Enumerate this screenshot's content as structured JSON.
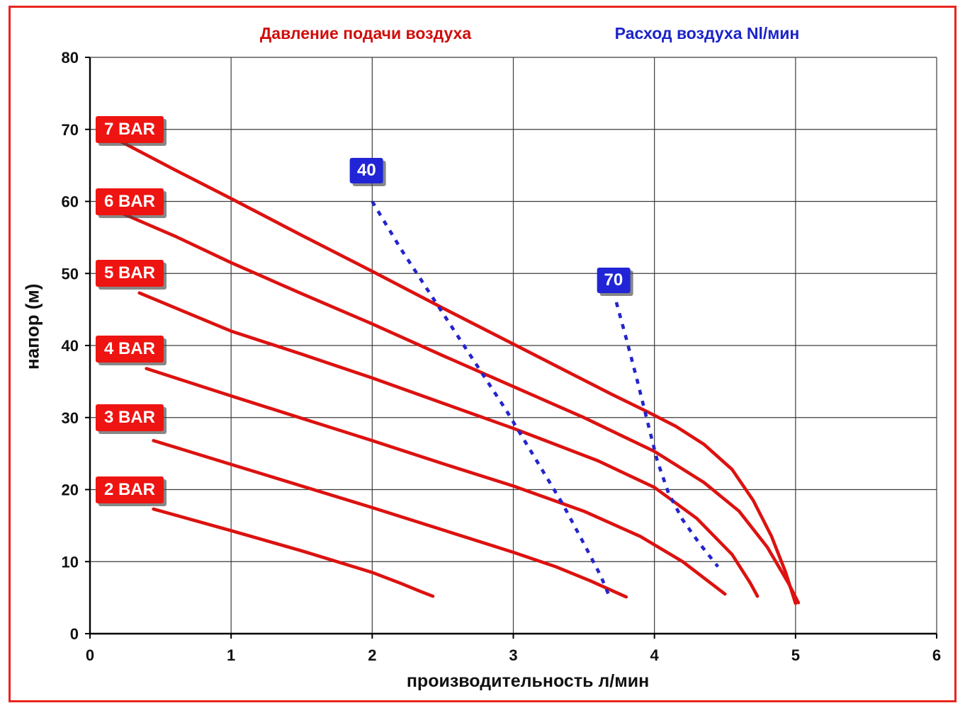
{
  "chart_data": {
    "type": "line",
    "title_left": "Давление подачи воздуха",
    "title_right": "Расход воздуха Nl/мин",
    "xlabel": "производительность л/мин",
    "ylabel": "напор (м)",
    "xlim": [
      0,
      6
    ],
    "ylim": [
      0,
      80
    ],
    "xticks": [
      0,
      1,
      2,
      3,
      4,
      5,
      6
    ],
    "yticks": [
      0,
      10,
      20,
      30,
      40,
      50,
      60,
      70,
      80
    ],
    "grid": true,
    "legend_position": "none",
    "colors": {
      "pressure_curve": "#dc1210",
      "flow_curve": "#2424cc",
      "grid": "#3c3c3c",
      "axis": "#000000",
      "frame": "#e8251f",
      "badge_red": "#ee1411",
      "badge_blue": "#2125d6"
    },
    "series": [
      {
        "name": "7 BAR",
        "color": "#dc1210",
        "style": "solid",
        "points": [
          [
            0.22,
            68.3
          ],
          [
            0.6,
            64.4
          ],
          [
            1.0,
            60.4
          ],
          [
            1.5,
            55.3
          ],
          [
            2.0,
            50.3
          ],
          [
            2.5,
            45.2
          ],
          [
            3.0,
            40.2
          ],
          [
            3.4,
            36.2
          ],
          [
            3.7,
            33.2
          ],
          [
            3.95,
            30.8
          ],
          [
            4.15,
            28.8
          ],
          [
            4.35,
            26.3
          ],
          [
            4.55,
            22.8
          ],
          [
            4.7,
            18.5
          ],
          [
            4.83,
            13.5
          ],
          [
            4.93,
            8.5
          ],
          [
            5.0,
            4.2
          ]
        ]
      },
      {
        "name": "6 BAR",
        "color": "#dc1210",
        "style": "solid",
        "points": [
          [
            0.15,
            59.0
          ],
          [
            0.6,
            55.2
          ],
          [
            1.0,
            51.5
          ],
          [
            1.5,
            47.2
          ],
          [
            2.0,
            43.0
          ],
          [
            2.5,
            38.6
          ],
          [
            3.0,
            34.3
          ],
          [
            3.5,
            30.0
          ],
          [
            4.0,
            25.3
          ],
          [
            4.35,
            21.0
          ],
          [
            4.6,
            17.0
          ],
          [
            4.8,
            12.0
          ],
          [
            4.95,
            7.0
          ],
          [
            5.02,
            4.3
          ]
        ]
      },
      {
        "name": "5 BAR",
        "color": "#dc1210",
        "style": "solid",
        "points": [
          [
            0.35,
            47.3
          ],
          [
            1.0,
            42.0
          ],
          [
            1.5,
            38.8
          ],
          [
            2.0,
            35.5
          ],
          [
            2.5,
            32.0
          ],
          [
            3.0,
            28.5
          ],
          [
            3.6,
            24.0
          ],
          [
            4.0,
            20.3
          ],
          [
            4.3,
            16.0
          ],
          [
            4.55,
            11.0
          ],
          [
            4.68,
            7.0
          ],
          [
            4.73,
            5.2
          ]
        ]
      },
      {
        "name": "4 BAR",
        "color": "#dc1210",
        "style": "solid",
        "points": [
          [
            0.4,
            36.8
          ],
          [
            1.0,
            33.0
          ],
          [
            1.5,
            29.9
          ],
          [
            2.0,
            26.8
          ],
          [
            2.5,
            23.6
          ],
          [
            3.0,
            20.5
          ],
          [
            3.5,
            17.0
          ],
          [
            3.9,
            13.5
          ],
          [
            4.2,
            10.0
          ],
          [
            4.4,
            7.0
          ],
          [
            4.5,
            5.5
          ]
        ]
      },
      {
        "name": "3 BAR",
        "color": "#dc1210",
        "style": "solid",
        "points": [
          [
            0.45,
            26.8
          ],
          [
            1.0,
            23.5
          ],
          [
            1.5,
            20.5
          ],
          [
            2.0,
            17.5
          ],
          [
            2.5,
            14.4
          ],
          [
            3.0,
            11.3
          ],
          [
            3.3,
            9.3
          ],
          [
            3.55,
            7.3
          ],
          [
            3.72,
            5.8
          ],
          [
            3.8,
            5.1
          ]
        ]
      },
      {
        "name": "2 BAR",
        "color": "#dc1210",
        "style": "solid",
        "points": [
          [
            0.45,
            17.3
          ],
          [
            1.0,
            14.3
          ],
          [
            1.5,
            11.5
          ],
          [
            2.0,
            8.5
          ],
          [
            2.2,
            7.0
          ],
          [
            2.35,
            5.8
          ],
          [
            2.43,
            5.2
          ]
        ]
      }
    ],
    "flow_lines": [
      {
        "name": "40",
        "color": "#2424cc",
        "style": "dashed",
        "points": [
          [
            2.0,
            60.0
          ],
          [
            2.2,
            53.5
          ],
          [
            2.45,
            46.0
          ],
          [
            2.7,
            38.5
          ],
          [
            2.95,
            31.0
          ],
          [
            3.15,
            24.5
          ],
          [
            3.35,
            18.0
          ],
          [
            3.5,
            12.5
          ],
          [
            3.62,
            8.0
          ],
          [
            3.68,
            5.2
          ]
        ]
      },
      {
        "name": "70",
        "color": "#2424cc",
        "style": "dashed",
        "points": [
          [
            3.73,
            46.0
          ],
          [
            3.8,
            41.0
          ],
          [
            3.88,
            35.0
          ],
          [
            3.95,
            29.5
          ],
          [
            4.02,
            24.0
          ],
          [
            4.1,
            19.5
          ],
          [
            4.2,
            15.8
          ],
          [
            4.32,
            12.5
          ],
          [
            4.45,
            9.3
          ]
        ]
      }
    ],
    "bar_labels": [
      {
        "text": "7 BAR",
        "x": 0.04,
        "y": 70
      },
      {
        "text": "6 BAR",
        "x": 0.04,
        "y": 60
      },
      {
        "text": "5 BAR",
        "x": 0.04,
        "y": 50
      },
      {
        "text": "4 BAR",
        "x": 0.04,
        "y": 39.5
      },
      {
        "text": "3 BAR",
        "x": 0.04,
        "y": 30
      },
      {
        "text": "2 BAR",
        "x": 0.04,
        "y": 20
      }
    ],
    "flow_labels": [
      {
        "text": "40",
        "x": 1.96,
        "y": 64.3
      },
      {
        "text": "70",
        "x": 3.71,
        "y": 49.0
      }
    ]
  }
}
